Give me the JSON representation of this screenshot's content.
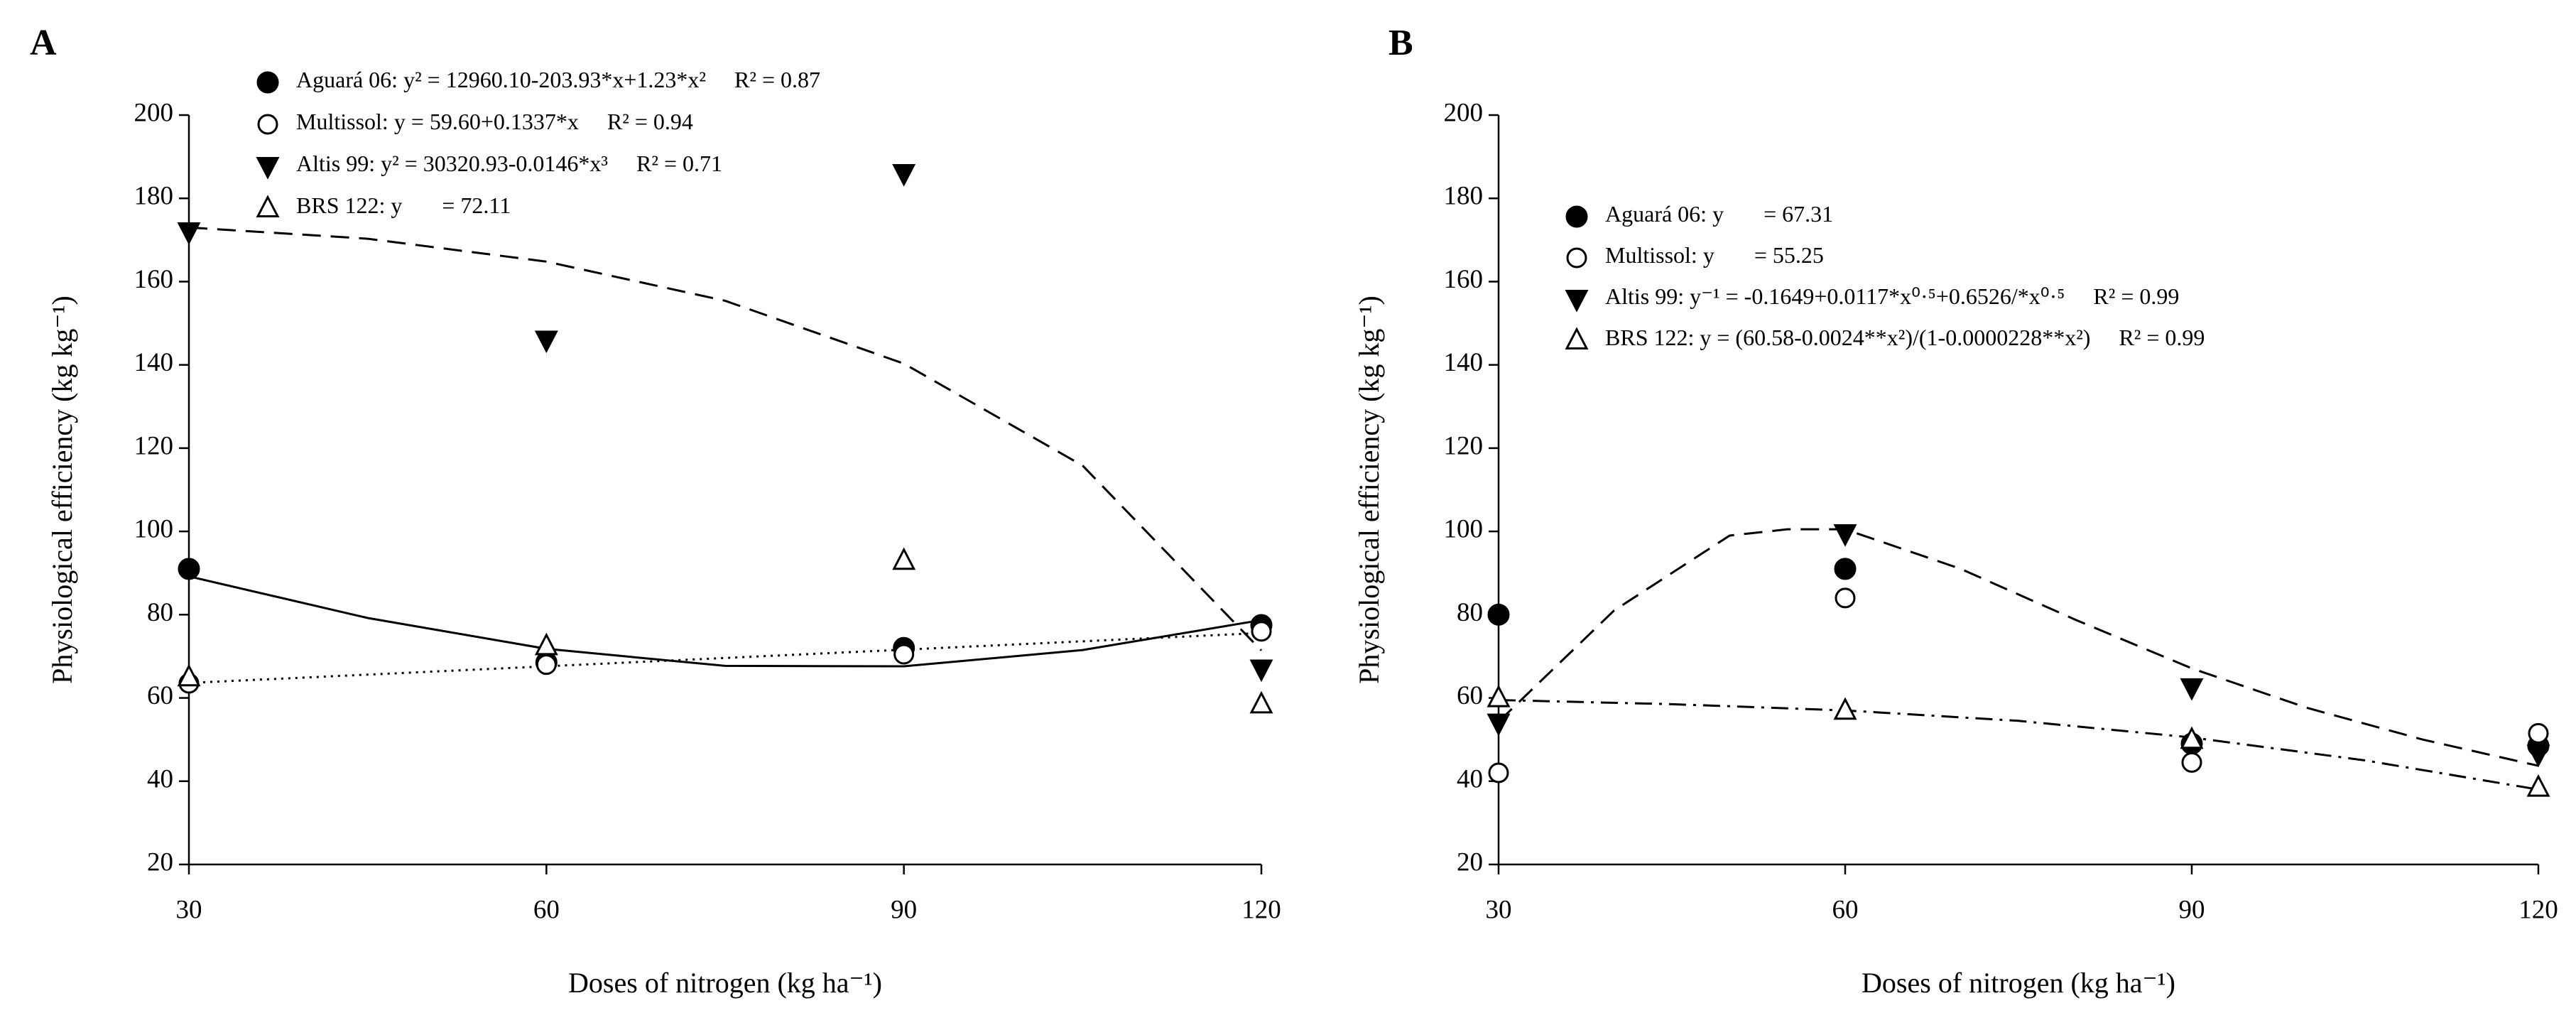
{
  "chart_data": [
    {
      "type": "scatter",
      "panel": "A",
      "xlabel": "Doses of nitrogen (kg ha⁻¹)",
      "ylabel": "Physiological efficiency (kg kg⁻¹)",
      "x": [
        30,
        60,
        90,
        120
      ],
      "xlim": [
        30,
        120
      ],
      "xticks": [
        30,
        60,
        90,
        120
      ],
      "ylim": [
        20,
        200
      ],
      "yticks": [
        20,
        40,
        60,
        80,
        100,
        120,
        140,
        160,
        180,
        200
      ],
      "series": [
        {
          "name": "Aguará 06: y² = 12960.10-203.93*x+1.23*x²",
          "r2": "R² = 0.87",
          "marker": "circle-filled",
          "color": "#000000",
          "values": [
            91,
            68.5,
            72,
            77.5
          ],
          "fit_style": "solid",
          "fit_x": [
            30,
            45,
            60,
            75,
            90,
            105,
            120
          ],
          "fit_values": [
            89.2,
            79.2,
            71.8,
            67.7,
            67.6,
            71.5,
            78.7
          ]
        },
        {
          "name": "Multissol: y = 59.60+0.1337*x",
          "r2": "R² = 0.94",
          "marker": "circle-open",
          "color": "#000000",
          "values": [
            63.5,
            68,
            70.5,
            76
          ],
          "fit_style": "dotted",
          "fit_x": [
            30,
            120
          ],
          "fit_values": [
            63.6,
            75.6
          ]
        },
        {
          "name": "Altis 99: y² = 30320.93-0.0146*x³",
          "r2": "R² = 0.71",
          "marker": "triangle-down-filled",
          "color": "#000000",
          "values": [
            172,
            146,
            186,
            67
          ],
          "fit_style": "dashed",
          "fit_x": [
            30,
            45,
            60,
            75,
            90,
            105,
            120
          ],
          "fit_values": [
            173.0,
            170.3,
            164.8,
            155.4,
            140.3,
            115.8,
            71.4
          ]
        },
        {
          "name": "BRS 122: y       = 72.11",
          "marker": "triangle-up-open",
          "color": "#000000",
          "values": [
            65,
            72.5,
            93,
            58.5
          ]
        }
      ]
    },
    {
      "type": "scatter",
      "panel": "B",
      "xlabel": "Doses of nitrogen (kg ha⁻¹)",
      "ylabel": "Physiological efficiency (kg kg⁻¹)",
      "x": [
        30,
        60,
        90,
        120
      ],
      "xlim": [
        30,
        120
      ],
      "xticks": [
        30,
        60,
        90,
        120
      ],
      "ylim": [
        20,
        200
      ],
      "yticks": [
        20,
        40,
        60,
        80,
        100,
        120,
        140,
        160,
        180,
        200
      ],
      "series": [
        {
          "name": "Aguará 06: y       = 67.31",
          "marker": "circle-filled",
          "color": "#000000",
          "values": [
            80,
            91,
            49,
            48.5
          ]
        },
        {
          "name": "Multissol: y       = 55.25",
          "marker": "circle-open",
          "color": "#000000",
          "values": [
            42,
            84,
            44.5,
            51.5
          ]
        },
        {
          "name": "Altis 99: y⁻¹ = -0.1649+0.0117*x⁰·⁵+0.6526/*x⁰·⁵",
          "r2": "R² = 0.99",
          "marker": "triangle-down-filled",
          "color": "#000000",
          "values": [
            54,
            99.5,
            62.5,
            46.5
          ],
          "fit_style": "dashed",
          "fit_x": [
            30,
            40,
            50,
            55,
            60,
            70,
            80,
            90,
            100,
            110,
            120
          ],
          "fit_values": [
            54.3,
            81,
            99,
            100.5,
            100.5,
            91,
            78.7,
            67.1,
            57.6,
            50,
            43.7
          ]
        },
        {
          "name": "BRS 122: y = (60.58-0.0024**x²)/(1-0.0000228**x²)",
          "r2": "R² = 0.99",
          "marker": "triangle-up-open",
          "color": "#000000",
          "values": [
            60,
            57,
            50,
            38.5
          ],
          "fit_style": "dashdot",
          "fit_x": [
            30,
            45,
            60,
            75,
            90,
            105,
            120
          ],
          "fit_values": [
            59.5,
            58.5,
            57,
            54.5,
            50.5,
            45,
            38
          ]
        }
      ]
    }
  ]
}
